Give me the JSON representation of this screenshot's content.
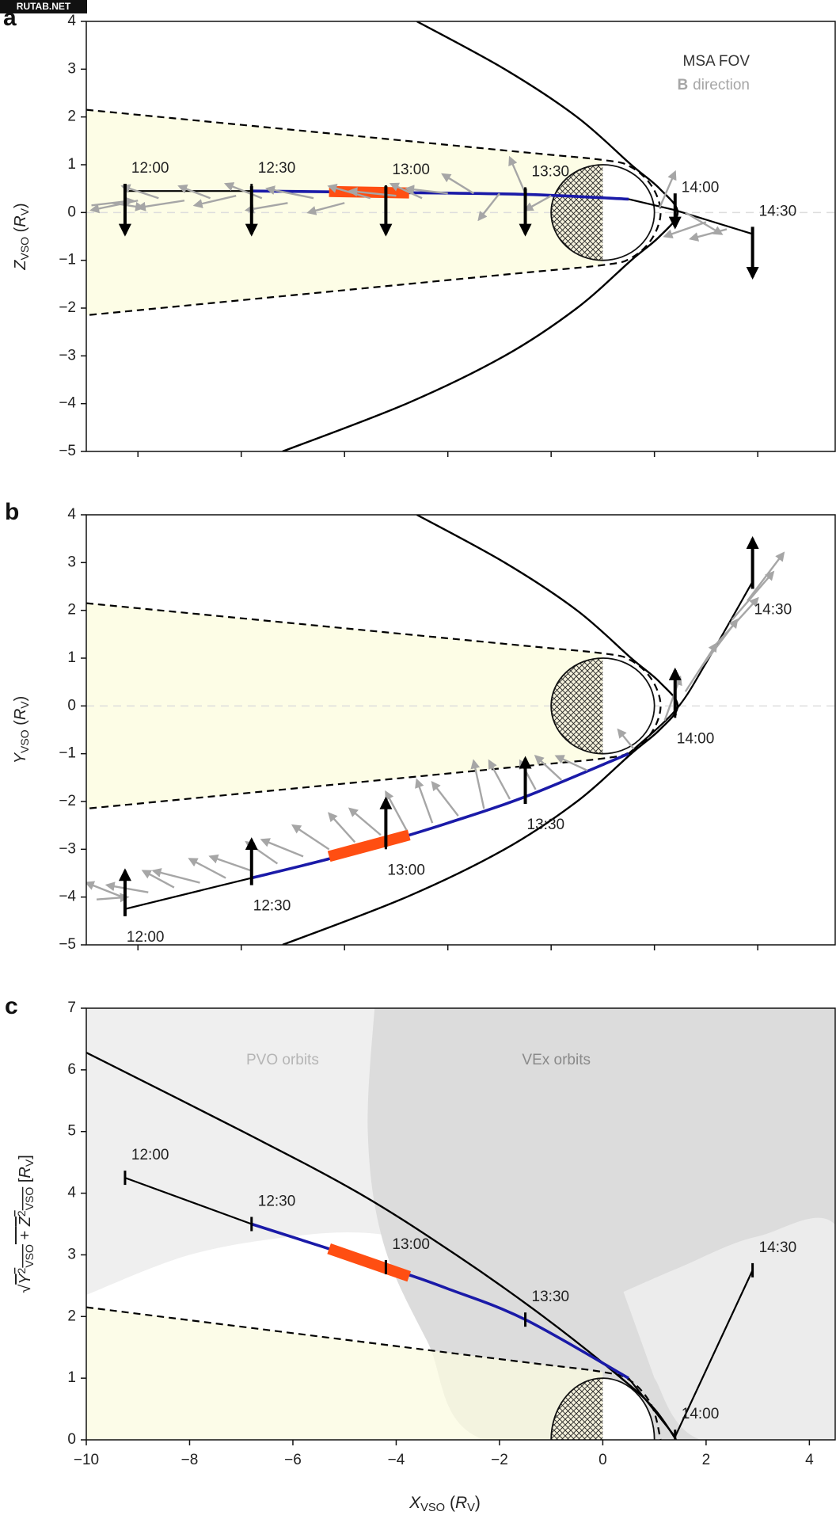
{
  "watermark": "RUTAB.NET",
  "chart_data": [
    {
      "type": "line",
      "panel": "a",
      "ylabel": [
        {
          "text": "Z",
          "italic": true
        },
        {
          "text": "VSO",
          "sub": true
        },
        {
          "text": " ("
        },
        {
          "text": "R",
          "italic": true
        },
        {
          "text": "V",
          "sub": true
        },
        {
          "text": ")"
        }
      ],
      "xlim": [
        -10,
        4.5
      ],
      "ylim": [
        -5,
        4
      ],
      "xticks": [
        -9,
        -7,
        -5,
        -3,
        -1,
        1,
        3
      ],
      "yticks": [
        {
          "value": -5,
          "label": "−5"
        },
        {
          "value": -4,
          "label": "−4"
        },
        {
          "value": -3,
          "label": "−3"
        },
        {
          "value": -2,
          "label": "−2"
        },
        {
          "value": -1,
          "label": "−1"
        },
        0,
        1,
        2,
        3,
        4
      ],
      "zero_line": true,
      "time_label_side": "above",
      "planet_radius": 1,
      "legend": {
        "corner": "upper right",
        "fov": "MSA FOV",
        "b": "B",
        "b_rest": "direction",
        "fov_color": "#333333",
        "b_color": "#a6a6a6"
      },
      "series": [
        {
          "color": "#000000",
          "linewidth": 2.4,
          "smooth": true,
          "x": [
            -3.6,
            -1.9,
            -0.5,
            0.55,
            1.1,
            1.45,
            1.1,
            0.55,
            -0.5,
            -1.9,
            -3.8,
            -6.2
          ],
          "values": [
            4,
            3,
            2,
            1,
            0.5,
            0,
            -0.5,
            -1,
            -2,
            -3,
            -4,
            -5
          ]
        },
        {
          "color": "#000000",
          "linewidth": 2.2,
          "dash": true,
          "fill": "#fdfde6",
          "smooth": true,
          "x": [
            -10,
            -2,
            0,
            0.55,
            0.95,
            1.12,
            0.95,
            0.55,
            0,
            -2,
            -10
          ],
          "values": [
            2.15,
            1.31,
            1.1,
            0.95,
            0.55,
            0,
            -0.55,
            -0.95,
            -1.1,
            -1.31,
            -2.15
          ]
        },
        {
          "color": "#000000",
          "linewidth": 2.2,
          "x": [
            -9.25,
            -6.8
          ],
          "values": [
            0.45,
            0.45
          ]
        },
        {
          "color": "#1a1aa8",
          "linewidth": 3.6,
          "smooth": true,
          "x": [
            -6.8,
            -4.2,
            -1.5,
            0.5
          ],
          "values": [
            0.45,
            0.42,
            0.38,
            0.28
          ]
        },
        {
          "color": "#ff4e12",
          "linewidth": 14,
          "x": [
            -5.3,
            -3.75
          ],
          "values": [
            0.44,
            0.41
          ]
        },
        {
          "color": "#000000",
          "linewidth": 2.2,
          "x": [
            0.5,
            1.4,
            2.9
          ],
          "values": [
            0.28,
            0.05,
            -0.45
          ]
        }
      ],
      "times": {
        "labels": [
          "12:00",
          "12:30",
          "13:00",
          "13:30",
          "14:00",
          "14:30"
        ],
        "x": [
          -9.25,
          -6.8,
          -4.2,
          -1.5,
          1.4,
          2.9
        ],
        "y": [
          0.45,
          0.45,
          0.42,
          0.38,
          0.05,
          -0.45
        ]
      },
      "b_arrows": {
        "color": "#000000",
        "x": [
          -9.25,
          -6.8,
          -4.2,
          -1.5,
          1.4,
          2.9
        ],
        "y": [
          0.6,
          0.55,
          0.55,
          0.5,
          0.4,
          -0.3
        ],
        "v": [
          -1.05,
          -1.0,
          -1.0,
          -0.95,
          -0.7,
          -1.05
        ]
      },
      "b_vectors": {
        "color": "#a6a6a6",
        "x": [
          -9.9,
          -9.5,
          -9.0,
          -8.6,
          -8.1,
          -7.6,
          -7.1,
          -6.6,
          -6.1,
          -5.6,
          -5.0,
          -4.5,
          -4.0,
          -3.5,
          -3.0,
          -2.5,
          -2.0,
          -1.5,
          -1.0,
          1.1,
          1.6,
          2.0,
          2.4
        ],
        "y": [
          0.15,
          0.2,
          0.25,
          0.3,
          0.25,
          0.3,
          0.35,
          0.3,
          0.2,
          0.3,
          0.2,
          0.3,
          0.35,
          0.3,
          0.4,
          0.4,
          0.4,
          0.4,
          0.35,
          0.1,
          0.0,
          -0.2,
          -0.35
        ],
        "u": [
          0.8,
          0.6,
          -0.9,
          -0.7,
          -0.9,
          -0.6,
          -0.8,
          -0.7,
          -0.8,
          -0.9,
          -0.7,
          -0.8,
          -0.9,
          -0.6,
          -0.8,
          -0.6,
          -0.4,
          -0.3,
          -0.5,
          0.3,
          0.7,
          -0.8,
          -0.7
        ],
        "v": [
          0.1,
          -0.1,
          -0.2,
          0.25,
          -0.15,
          0.25,
          -0.2,
          0.3,
          -0.15,
          0.2,
          -0.2,
          0.25,
          0.1,
          0.3,
          0.1,
          0.4,
          -0.55,
          0.75,
          -0.3,
          0.75,
          -0.45,
          -0.3,
          -0.2
        ]
      }
    },
    {
      "type": "line",
      "panel": "b",
      "ylabel": [
        {
          "text": "Y",
          "italic": true
        },
        {
          "text": "VSO",
          "sub": true
        },
        {
          "text": " ("
        },
        {
          "text": "R",
          "italic": true
        },
        {
          "text": "V",
          "sub": true
        },
        {
          "text": ")"
        }
      ],
      "xlim": [
        -10,
        4.5
      ],
      "ylim": [
        -5,
        4
      ],
      "xticks": [
        -9,
        -7,
        -5,
        -3,
        -1,
        1,
        3
      ],
      "yticks": [
        {
          "value": -5,
          "label": "−5"
        },
        {
          "value": -4,
          "label": "−4"
        },
        {
          "value": -3,
          "label": "−3"
        },
        {
          "value": -2,
          "label": "−2"
        },
        {
          "value": -1,
          "label": "−1"
        },
        0,
        1,
        2,
        3,
        4
      ],
      "zero_line": true,
      "time_label_side": "below",
      "planet_radius": 1,
      "series": [
        {
          "color": "#000000",
          "linewidth": 2.4,
          "smooth": true,
          "x": [
            -3.6,
            -1.9,
            -0.5,
            0.55,
            1.1,
            1.45,
            1.1,
            0.55,
            -0.5,
            -1.9,
            -3.8,
            -6.2
          ],
          "values": [
            4,
            3,
            2,
            1,
            0.5,
            0,
            -0.5,
            -1,
            -2,
            -3,
            -4,
            -5
          ]
        },
        {
          "color": "#000000",
          "linewidth": 2.2,
          "dash": true,
          "fill": "#fdfde6",
          "smooth": true,
          "x": [
            -10,
            -2,
            0,
            0.55,
            0.95,
            1.12,
            0.95,
            0.55,
            0,
            -2,
            -10
          ],
          "values": [
            2.15,
            1.31,
            1.1,
            0.95,
            0.55,
            0,
            -0.55,
            -0.95,
            -1.1,
            -1.31,
            -2.15
          ]
        },
        {
          "color": "#000000",
          "linewidth": 2.2,
          "x": [
            -9.25,
            -6.8
          ],
          "values": [
            -4.25,
            -3.6
          ]
        },
        {
          "color": "#1a1aa8",
          "linewidth": 3.6,
          "smooth": true,
          "x": [
            -6.8,
            -5.3,
            -4.2,
            -3,
            -1.5,
            0.5
          ],
          "values": [
            -3.6,
            -3.2,
            -2.85,
            -2.45,
            -1.9,
            -1.0
          ]
        },
        {
          "color": "#ff4e12",
          "linewidth": 14,
          "x": [
            -5.3,
            -3.75
          ],
          "values": [
            -3.15,
            -2.7
          ]
        },
        {
          "color": "#000000",
          "linewidth": 2.2,
          "smooth": true,
          "x": [
            0.5,
            1.4,
            2,
            2.9
          ],
          "values": [
            -1.0,
            -0.1,
            0.9,
            2.6
          ]
        }
      ],
      "times": {
        "labels": [
          "12:00",
          "12:30",
          "13:00",
          "13:30",
          "14:00",
          "14:30"
        ],
        "x": [
          -9.25,
          -6.8,
          -4.2,
          -1.5,
          1.4,
          2.9
        ],
        "y": [
          -4.25,
          -3.6,
          -2.85,
          -1.9,
          -0.1,
          2.6
        ]
      },
      "b_arrows": {
        "color": "#000000",
        "x": [
          -9.25,
          -6.8,
          -4.2,
          -1.5,
          1.4,
          2.9
        ],
        "y": [
          -4.4,
          -3.75,
          -2.95,
          -2.05,
          -0.2,
          2.45
        ],
        "v": [
          0.95,
          0.95,
          1.0,
          0.95,
          0.95,
          1.05
        ]
      },
      "b_vectors": {
        "color": "#a6a6a6",
        "x": [
          -9.8,
          -9.3,
          -8.8,
          -8.3,
          -7.8,
          -7.3,
          -6.8,
          -6.3,
          -5.8,
          -5.3,
          -4.8,
          -4.3,
          -3.8,
          -3.3,
          -2.8,
          -2.3,
          -1.8,
          -1.3,
          -0.8,
          -0.3,
          0.6,
          1.2,
          1.6,
          1.9,
          2.2,
          2.5,
          2.8
        ],
        "y": [
          -4.05,
          -4.0,
          -3.9,
          -3.8,
          -3.7,
          -3.6,
          -3.45,
          -3.3,
          -3.15,
          -3.0,
          -2.85,
          -2.7,
          -2.6,
          -2.45,
          -2.3,
          -2.15,
          -1.95,
          -1.75,
          -1.55,
          -1.35,
          -0.9,
          -0.3,
          0.3,
          0.8,
          1.3,
          1.8,
          2.2
        ],
        "u": [
          0.6,
          -0.7,
          -0.8,
          -0.6,
          -0.9,
          -0.7,
          -0.8,
          -0.6,
          -0.8,
          -0.7,
          -0.5,
          -0.6,
          -0.4,
          -0.3,
          -0.5,
          -0.2,
          -0.4,
          -0.3,
          -0.5,
          -0.6,
          -0.3,
          0.3,
          0.6,
          0.7,
          0.8,
          0.8,
          0.7
        ],
        "v": [
          0.05,
          0.3,
          0.15,
          0.35,
          0.25,
          0.4,
          0.3,
          0.45,
          0.35,
          0.5,
          0.6,
          0.55,
          0.8,
          0.9,
          0.7,
          1.0,
          0.8,
          0.6,
          0.5,
          0.3,
          0.4,
          0.9,
          1.0,
          1.0,
          0.95,
          1.0,
          1.0
        ]
      }
    },
    {
      "type": "line",
      "panel": "c",
      "ylabel": [
        {
          "text": "√"
        },
        {
          "text": "Y",
          "italic": true,
          "over": true
        },
        {
          "text": "2",
          "sup": true,
          "over": true
        },
        {
          "text": "VSO",
          "sub": true,
          "over": true
        },
        {
          "text": " + ",
          "over": true
        },
        {
          "text": "Z",
          "italic": true,
          "over": true
        },
        {
          "text": "2",
          "sup": true,
          "over": true
        },
        {
          "text": "VSO",
          "sub": true,
          "over": true
        },
        {
          "text": " ["
        },
        {
          "text": "R",
          "italic": true
        },
        {
          "text": "V",
          "sub": true
        },
        {
          "text": "]"
        }
      ],
      "xlabel": [
        {
          "text": "X",
          "italic": true
        },
        {
          "text": "VSO",
          "sub": true
        },
        {
          "text": " ("
        },
        {
          "text": "R",
          "italic": true
        },
        {
          "text": "V",
          "sub": true
        },
        {
          "text": ")"
        }
      ],
      "xlim": [
        -10,
        4.5
      ],
      "ylim": [
        0,
        7
      ],
      "xticks": [
        {
          "value": -10,
          "label": "−10"
        },
        {
          "value": -8,
          "label": "−8"
        },
        {
          "value": -6,
          "label": "−6"
        },
        {
          "value": -4,
          "label": "−4"
        },
        {
          "value": -2,
          "label": "−2"
        },
        0,
        2,
        4
      ],
      "yticks": [
        0,
        1,
        2,
        3,
        4,
        5,
        6,
        7
      ],
      "zero_line": false,
      "time_label_side": "above",
      "planet_radius": 1,
      "annotations": [
        "PVO orbits",
        "VEx orbits"
      ],
      "series": [
        {
          "color": "#000000",
          "linewidth": 2.4,
          "smooth": true,
          "x": [
            -10,
            -6.97,
            -4.72,
            -2.84,
            -1.15,
            0.36,
            1.0,
            1.42
          ],
          "values": [
            6.28,
            5,
            4,
            3,
            2,
            1,
            0.5,
            0
          ]
        },
        {
          "color": "#000000",
          "linewidth": 2.2,
          "dash": true,
          "fill": "#fbfbe0",
          "smooth": true,
          "x": [
            -10,
            -2,
            0,
            0.55,
            0.95,
            1.12
          ],
          "values": [
            2.15,
            1.31,
            1.1,
            0.95,
            0.55,
            0
          ]
        },
        {
          "color": "#000000",
          "linewidth": 2.2,
          "x": [
            -9.25,
            -6.8
          ],
          "values": [
            4.25,
            3.5
          ]
        },
        {
          "color": "#1a1aa8",
          "linewidth": 3.6,
          "smooth": true,
          "x": [
            -6.8,
            -4.2,
            -3,
            -1.5,
            0.5
          ],
          "values": [
            3.5,
            2.8,
            2.45,
            1.95,
            1.0
          ]
        },
        {
          "color": "#ff4e12",
          "linewidth": 14,
          "x": [
            -5.3,
            -3.75
          ],
          "values": [
            3.1,
            2.65
          ]
        },
        {
          "color": "#000000",
          "linewidth": 2.2,
          "x": [
            0.5,
            1.4,
            2.9
          ],
          "values": [
            1.0,
            0.05,
            2.75
          ]
        }
      ],
      "times": {
        "labels": [
          "12:00",
          "12:30",
          "13:00",
          "13:30",
          "14:00",
          "14:30"
        ],
        "x": [
          -9.25,
          -6.8,
          -4.2,
          -1.5,
          1.4,
          2.9
        ],
        "y": [
          4.25,
          3.5,
          2.8,
          1.95,
          0.05,
          2.75
        ]
      }
    }
  ]
}
